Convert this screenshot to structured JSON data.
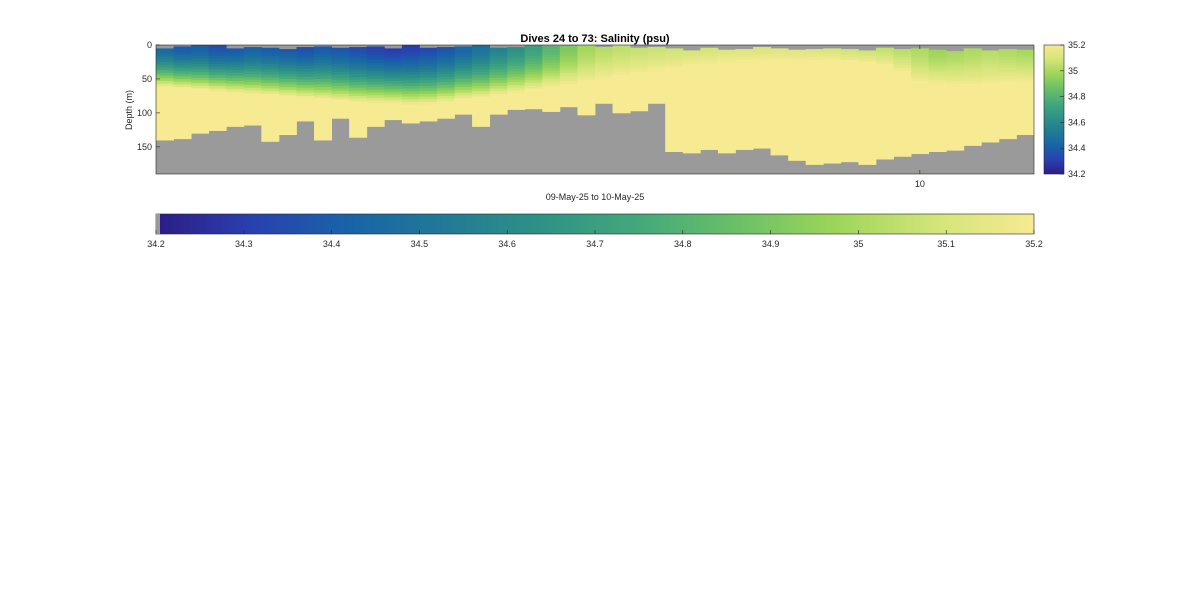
{
  "chart_data": {
    "type": "heatmap",
    "title": "Dives 24 to 73: Salinity (psu)",
    "xlabel": "09-May-25 to 10-May-25",
    "ylabel": "Depth (m)",
    "dives": {
      "first": 24,
      "last": 73,
      "count": 50
    },
    "ylim": [
      0,
      190
    ],
    "y_reversed": true,
    "yticks": [
      0,
      50,
      100,
      150
    ],
    "xtick_labels": [
      "10"
    ],
    "xtick_dive": 67.5,
    "colorbar_right": {
      "ticks": [
        35.2,
        35,
        34.8,
        34.6,
        34.4,
        34.2
      ],
      "range": [
        34.2,
        35.2
      ]
    },
    "colorbar_bottom": {
      "ticks": [
        34.2,
        34.3,
        34.4,
        34.5,
        34.6,
        34.7,
        34.8,
        34.9,
        35,
        35.1,
        35.2
      ],
      "range": [
        34.2,
        35.2
      ]
    },
    "colormap": [
      "#2d1c85",
      "#2941b0",
      "#1864a8",
      "#227b95",
      "#2f9386",
      "#45a97b",
      "#6cc166",
      "#9fd65a",
      "#d3e57a",
      "#f6ea92"
    ],
    "nodata_color": "#9a9a9a",
    "max_depth_m": [
      140,
      138,
      130,
      126,
      120,
      118,
      142,
      132,
      112,
      140,
      108,
      136,
      120,
      110,
      115,
      112,
      108,
      102,
      120,
      102,
      95,
      94,
      98,
      91,
      103,
      86,
      100,
      97,
      86,
      157,
      159,
      154,
      159,
      154,
      152,
      162,
      170,
      176,
      174,
      172,
      176,
      168,
      164,
      160,
      157,
      155,
      148,
      143,
      138,
      132
    ],
    "surface_gap_m": [
      5,
      2,
      0,
      0,
      5,
      3,
      4,
      6,
      3,
      2,
      4,
      3,
      2,
      5,
      0,
      4,
      3,
      2,
      0,
      4,
      3,
      0,
      2,
      1,
      0,
      3,
      0,
      4,
      3,
      5,
      8,
      4,
      7,
      6,
      3,
      5,
      7,
      6,
      5,
      6,
      8,
      4,
      6,
      5,
      7,
      9,
      5,
      8,
      6,
      7
    ],
    "fresh_layer_bottom_m": [
      62,
      64,
      66,
      68,
      70,
      72,
      74,
      76,
      78,
      80,
      82,
      84,
      85,
      86,
      88,
      87,
      84,
      80,
      78,
      74,
      70,
      66,
      62,
      58,
      54,
      50,
      46,
      42,
      38,
      34,
      30,
      28,
      26,
      25,
      24,
      24,
      23,
      22,
      22,
      24,
      26,
      30,
      40,
      55,
      58,
      60,
      60,
      58,
      56,
      55
    ],
    "surface_salinity_psu": [
      34.42,
      34.38,
      34.4,
      34.35,
      34.36,
      34.4,
      34.38,
      34.36,
      34.34,
      34.38,
      34.36,
      34.33,
      34.3,
      34.28,
      34.3,
      34.32,
      34.36,
      34.42,
      34.48,
      34.55,
      34.62,
      34.7,
      34.8,
      34.9,
      34.98,
      35.02,
      35.04,
      35.05,
      35.06,
      35.07,
      35.08,
      35.08,
      35.1,
      35.1,
      35.1,
      35.11,
      35.1,
      35.09,
      35.08,
      35.06,
      35.05,
      35.04,
      35.02,
      35.0,
      34.96,
      34.98,
      35.0,
      35.02,
      35.0,
      34.98
    ],
    "deep_salinity_psu": 35.2
  }
}
